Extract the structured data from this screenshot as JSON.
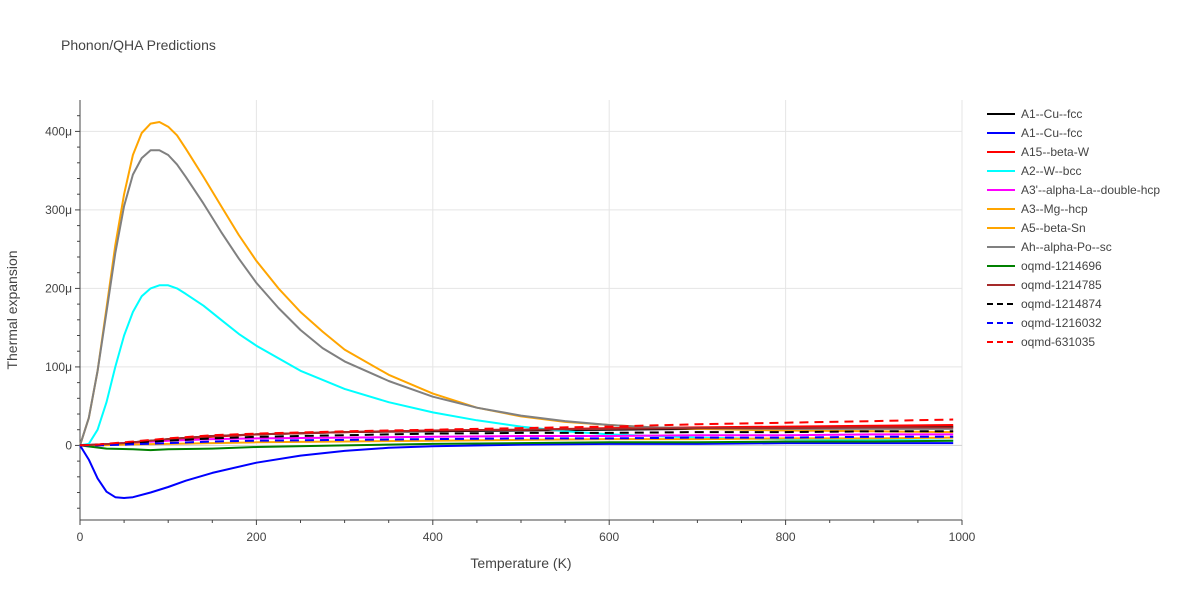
{
  "chart_data": {
    "type": "line",
    "title": "Phonon/QHA Predictions",
    "xlabel": "Temperature (K)",
    "ylabel": "Thermal expansion",
    "xlim": [
      0,
      1000
    ],
    "ylim": [
      -95,
      440
    ],
    "x_ticks": [
      0,
      200,
      400,
      600,
      800,
      1000
    ],
    "x_tick_labels": [
      "0",
      "200",
      "400",
      "600",
      "800",
      "1000"
    ],
    "y_ticks": [
      0,
      100,
      200,
      300,
      400
    ],
    "y_tick_labels": [
      "0",
      "100μ",
      "200μ",
      "300μ",
      "400μ"
    ],
    "grid": true,
    "legend_position": "right",
    "series": [
      {
        "name": "A1--Cu--fcc",
        "color": "#000000",
        "dash": "solid",
        "points": [
          [
            0,
            0
          ],
          [
            20,
            1
          ],
          [
            50,
            3
          ],
          [
            100,
            8
          ],
          [
            150,
            12
          ],
          [
            200,
            14
          ],
          [
            300,
            17
          ],
          [
            400,
            18
          ],
          [
            500,
            19
          ],
          [
            600,
            20
          ],
          [
            700,
            21
          ],
          [
            800,
            22
          ],
          [
            900,
            23
          ],
          [
            990,
            24
          ]
        ]
      },
      {
        "name": "A1--Cu--fcc",
        "color": "#0000ff",
        "dash": "solid",
        "points": [
          [
            0,
            0
          ],
          [
            10,
            -18
          ],
          [
            20,
            -42
          ],
          [
            30,
            -59
          ],
          [
            40,
            -66
          ],
          [
            50,
            -67
          ],
          [
            60,
            -66
          ],
          [
            80,
            -60
          ],
          [
            100,
            -53
          ],
          [
            120,
            -45
          ],
          [
            150,
            -35
          ],
          [
            200,
            -22
          ],
          [
            250,
            -13
          ],
          [
            300,
            -7
          ],
          [
            350,
            -3
          ],
          [
            400,
            -1
          ],
          [
            500,
            1
          ],
          [
            600,
            2
          ],
          [
            700,
            2
          ],
          [
            800,
            3
          ],
          [
            900,
            3
          ],
          [
            990,
            3
          ]
        ]
      },
      {
        "name": "A15--beta-W",
        "color": "#ff0000",
        "dash": "solid",
        "points": [
          [
            0,
            0
          ],
          [
            20,
            1
          ],
          [
            50,
            3
          ],
          [
            100,
            7
          ],
          [
            150,
            11
          ],
          [
            200,
            14
          ],
          [
            300,
            17
          ],
          [
            400,
            19
          ],
          [
            500,
            20
          ],
          [
            600,
            22
          ],
          [
            700,
            23
          ],
          [
            800,
            24
          ],
          [
            900,
            25
          ],
          [
            990,
            26
          ]
        ]
      },
      {
        "name": "A2--W--bcc",
        "color": "#00ffff",
        "dash": "solid",
        "points": [
          [
            0,
            0
          ],
          [
            10,
            2
          ],
          [
            20,
            20
          ],
          [
            30,
            55
          ],
          [
            40,
            100
          ],
          [
            50,
            140
          ],
          [
            60,
            170
          ],
          [
            70,
            190
          ],
          [
            80,
            200
          ],
          [
            90,
            204
          ],
          [
            100,
            204
          ],
          [
            110,
            200
          ],
          [
            120,
            193
          ],
          [
            140,
            178
          ],
          [
            160,
            160
          ],
          [
            180,
            142
          ],
          [
            200,
            127
          ],
          [
            250,
            95
          ],
          [
            300,
            72
          ],
          [
            350,
            55
          ],
          [
            400,
            42
          ],
          [
            450,
            32
          ],
          [
            500,
            24
          ],
          [
            550,
            18
          ],
          [
            600,
            14
          ],
          [
            650,
            12
          ],
          [
            700,
            10
          ],
          [
            800,
            8
          ],
          [
            900,
            7
          ],
          [
            990,
            6
          ]
        ]
      },
      {
        "name": "A3'--alpha-La--double-hcp",
        "color": "#ff00ff",
        "dash": "solid",
        "points": [
          [
            0,
            0
          ],
          [
            20,
            1
          ],
          [
            50,
            3
          ],
          [
            100,
            6
          ],
          [
            150,
            8
          ],
          [
            200,
            9
          ],
          [
            300,
            10
          ],
          [
            400,
            11
          ],
          [
            500,
            12
          ],
          [
            600,
            12
          ],
          [
            700,
            13
          ],
          [
            800,
            13
          ],
          [
            900,
            14
          ],
          [
            990,
            14
          ]
        ]
      },
      {
        "name": "A3--Mg--hcp",
        "color": "#ffa500",
        "dash": "solid",
        "points": [
          [
            0,
            0
          ],
          [
            20,
            0
          ],
          [
            50,
            1
          ],
          [
            100,
            2
          ],
          [
            200,
            4
          ],
          [
            300,
            5
          ],
          [
            400,
            6
          ],
          [
            500,
            7
          ],
          [
            600,
            8
          ],
          [
            700,
            8
          ],
          [
            800,
            9
          ],
          [
            900,
            9
          ],
          [
            990,
            10
          ]
        ]
      },
      {
        "name": "A5--beta-Sn",
        "color": "#ffa500",
        "dash": "solid",
        "points": [
          [
            0,
            0
          ],
          [
            10,
            35
          ],
          [
            20,
            95
          ],
          [
            30,
            175
          ],
          [
            40,
            255
          ],
          [
            50,
            320
          ],
          [
            60,
            370
          ],
          [
            70,
            398
          ],
          [
            80,
            410
          ],
          [
            90,
            412
          ],
          [
            100,
            406
          ],
          [
            110,
            395
          ],
          [
            120,
            378
          ],
          [
            140,
            342
          ],
          [
            160,
            305
          ],
          [
            180,
            268
          ],
          [
            200,
            235
          ],
          [
            225,
            200
          ],
          [
            250,
            170
          ],
          [
            275,
            145
          ],
          [
            300,
            122
          ],
          [
            350,
            90
          ],
          [
            400,
            66
          ],
          [
            450,
            48
          ],
          [
            500,
            37
          ],
          [
            550,
            30
          ],
          [
            600,
            26
          ],
          [
            650,
            23
          ],
          [
            700,
            21
          ],
          [
            800,
            19
          ],
          [
            900,
            18
          ],
          [
            990,
            17
          ]
        ]
      },
      {
        "name": "Ah--alpha-Po--sc",
        "color": "#808080",
        "dash": "solid",
        "points": [
          [
            0,
            0
          ],
          [
            10,
            35
          ],
          [
            20,
            95
          ],
          [
            30,
            170
          ],
          [
            40,
            245
          ],
          [
            50,
            305
          ],
          [
            60,
            345
          ],
          [
            70,
            366
          ],
          [
            80,
            376
          ],
          [
            90,
            376
          ],
          [
            100,
            370
          ],
          [
            110,
            358
          ],
          [
            120,
            342
          ],
          [
            140,
            308
          ],
          [
            160,
            272
          ],
          [
            180,
            238
          ],
          [
            200,
            207
          ],
          [
            225,
            175
          ],
          [
            250,
            147
          ],
          [
            275,
            124
          ],
          [
            300,
            107
          ],
          [
            350,
            82
          ],
          [
            400,
            62
          ],
          [
            450,
            48
          ],
          [
            500,
            38
          ],
          [
            550,
            31
          ],
          [
            600,
            26
          ],
          [
            650,
            23
          ],
          [
            700,
            22
          ],
          [
            800,
            21
          ],
          [
            900,
            21
          ],
          [
            990,
            21
          ]
        ]
      },
      {
        "name": "oqmd-1214696",
        "color": "#008000",
        "dash": "solid",
        "points": [
          [
            0,
            0
          ],
          [
            30,
            -4
          ],
          [
            60,
            -5
          ],
          [
            80,
            -6
          ],
          [
            100,
            -5
          ],
          [
            150,
            -4
          ],
          [
            200,
            -2
          ],
          [
            300,
            0
          ],
          [
            400,
            2
          ],
          [
            500,
            3
          ],
          [
            600,
            4
          ],
          [
            700,
            4
          ],
          [
            800,
            5
          ],
          [
            900,
            5
          ],
          [
            990,
            6
          ]
        ]
      },
      {
        "name": "oqmd-1214785",
        "color": "#a52a2a",
        "dash": "solid",
        "points": [
          [
            0,
            0
          ],
          [
            20,
            1
          ],
          [
            50,
            3
          ],
          [
            100,
            8
          ],
          [
            150,
            12
          ],
          [
            200,
            14
          ],
          [
            300,
            17
          ],
          [
            400,
            19
          ],
          [
            500,
            20
          ],
          [
            600,
            21
          ],
          [
            700,
            22
          ],
          [
            800,
            22
          ],
          [
            900,
            23
          ],
          [
            990,
            23
          ]
        ]
      },
      {
        "name": "oqmd-1214874",
        "color": "#000000",
        "dash": "dash",
        "points": [
          [
            0,
            0
          ],
          [
            20,
            1
          ],
          [
            50,
            3
          ],
          [
            100,
            6
          ],
          [
            150,
            9
          ],
          [
            200,
            11
          ],
          [
            300,
            13
          ],
          [
            400,
            15
          ],
          [
            500,
            16
          ],
          [
            600,
            16
          ],
          [
            700,
            17
          ],
          [
            800,
            17
          ],
          [
            900,
            18
          ],
          [
            990,
            18
          ]
        ]
      },
      {
        "name": "oqmd-1216032",
        "color": "#0000ff",
        "dash": "dash",
        "points": [
          [
            0,
            0
          ],
          [
            20,
            0
          ],
          [
            50,
            1
          ],
          [
            100,
            3
          ],
          [
            150,
            5
          ],
          [
            200,
            6
          ],
          [
            300,
            7
          ],
          [
            400,
            8
          ],
          [
            500,
            9
          ],
          [
            600,
            9
          ],
          [
            700,
            10
          ],
          [
            800,
            10
          ],
          [
            900,
            11
          ],
          [
            990,
            11
          ]
        ]
      },
      {
        "name": "oqmd-631035",
        "color": "#ff0000",
        "dash": "dash",
        "points": [
          [
            0,
            0
          ],
          [
            20,
            1
          ],
          [
            50,
            4
          ],
          [
            100,
            9
          ],
          [
            150,
            13
          ],
          [
            200,
            15
          ],
          [
            300,
            18
          ],
          [
            400,
            20
          ],
          [
            500,
            22
          ],
          [
            600,
            24
          ],
          [
            700,
            27
          ],
          [
            800,
            29
          ],
          [
            900,
            31
          ],
          [
            990,
            33
          ]
        ]
      }
    ]
  }
}
